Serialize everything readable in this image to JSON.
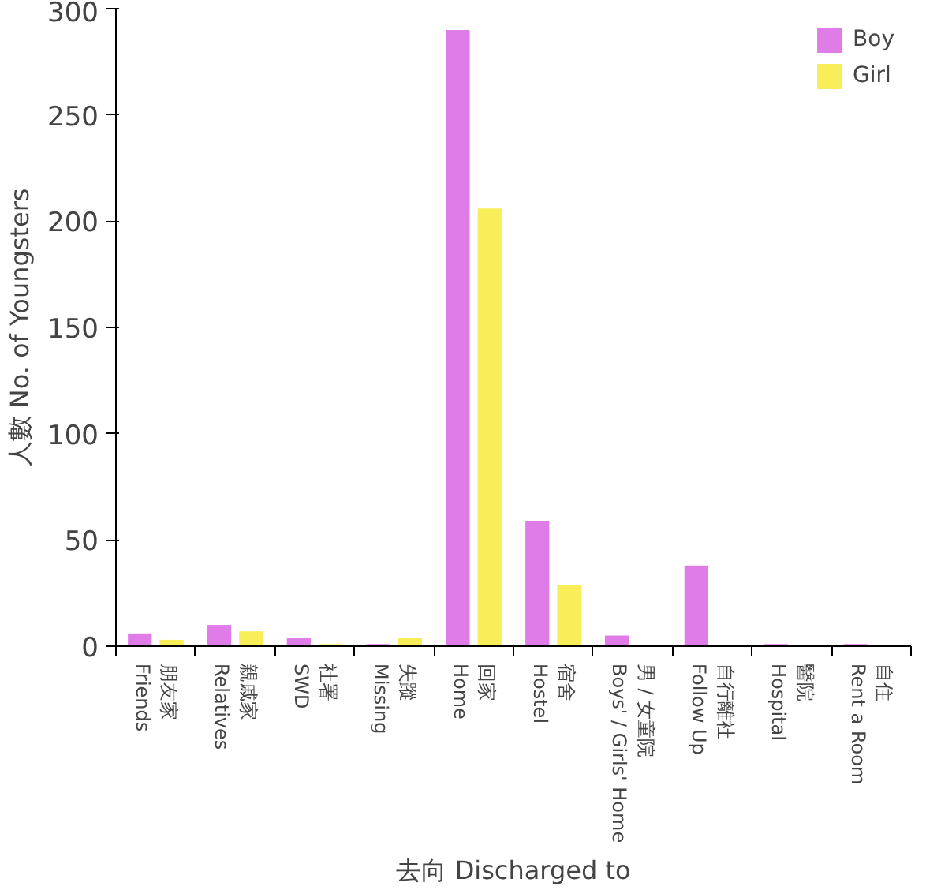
{
  "chart_data": {
    "type": "bar",
    "xlabel": "去向 Discharged to",
    "ylabel": "人數 No. of Youngsters",
    "categories": [
      "朋友家\nFriends",
      "親戚家\nRelatives",
      "社署\nSWD",
      "失蹤\nMissing",
      "回家\nHome",
      "宿舍\nHostel",
      "男 / 女童院\nBoys' / Girls' Home",
      "自行離社\nFollow Up",
      "醫院\nHospital",
      "自住\nRent a Room"
    ],
    "series": [
      {
        "name": "Boy",
        "color": "#e07ce8",
        "values": [
          6,
          10,
          4,
          1,
          290,
          59,
          5,
          38,
          1,
          1
        ]
      },
      {
        "name": "Girl",
        "color": "#f7ee5a",
        "values": [
          3,
          7,
          1,
          4,
          206,
          29,
          0,
          0,
          0,
          0
        ]
      }
    ],
    "ylim": [
      0,
      300
    ],
    "yticks": [
      0,
      50,
      100,
      150,
      200,
      250,
      300
    ],
    "grid": false,
    "legend": "top right"
  }
}
